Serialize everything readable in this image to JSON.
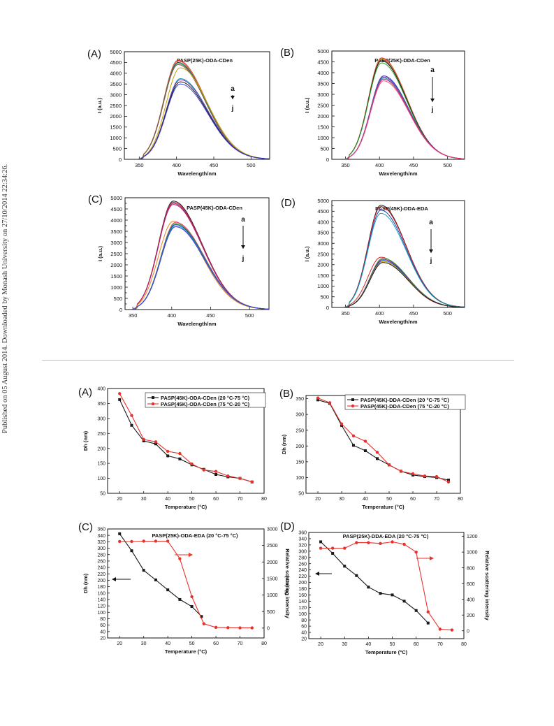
{
  "side_note": "Published on 05 August 2014. Downloaded by Monash University on 27/10/2014 22:34:26.",
  "chart_data": [
    {
      "type": "line",
      "panel_label": "(A)",
      "title": "PASP(25K)-ODA-CDen",
      "xlabel": "Wavelength/nm",
      "ylabel": "I (a.u.)",
      "xlim": [
        330,
        525
      ],
      "ylim": [
        0,
        5000
      ],
      "xticks": [
        350,
        400,
        450,
        500
      ],
      "yticks": [
        0,
        500,
        1000,
        1500,
        2000,
        2500,
        3000,
        3500,
        4000,
        4500,
        5000
      ],
      "arrow_from": "a",
      "arrow_to": "j",
      "peak_wavelength": 402,
      "peak_intensities": [
        4600,
        4560,
        4500,
        4450,
        4400,
        4250,
        3750,
        3700,
        3600,
        3500
      ],
      "series_colors": [
        "#d62728",
        "#e8871e",
        "#1f3fbf",
        "#2ca02c",
        "#8c564b",
        "#c8a000",
        "#17a2b8",
        "#7b2ea8",
        "#1a1a1a",
        "#3b3bd6"
      ]
    },
    {
      "type": "line",
      "panel_label": "(B)",
      "title": "PASP(25K)-DDA-CDen",
      "xlabel": "Wavelength/nm",
      "ylabel": "I (a.u.)",
      "xlim": [
        330,
        525
      ],
      "ylim": [
        0,
        5000
      ],
      "xticks": [
        350,
        400,
        450,
        500
      ],
      "yticks": [
        0,
        500,
        1000,
        1500,
        2000,
        2500,
        3000,
        3500,
        4000,
        4500,
        5000
      ],
      "arrow_from": "a",
      "arrow_to": "j",
      "peak_wavelength": 403,
      "peak_intensities": [
        4680,
        4650,
        4600,
        4550,
        4450,
        3850,
        3800,
        3750,
        3700,
        3620
      ],
      "series_colors": [
        "#d62728",
        "#e8871e",
        "#8c564b",
        "#1a1a1a",
        "#2ca02c",
        "#1f3fbf",
        "#7b2ea8",
        "#17a2b8",
        "#c2185b",
        "#ff3b7a"
      ]
    },
    {
      "type": "line",
      "panel_label": "(C)",
      "title": "PASP(45K)-ODA-CDen",
      "xlabel": "Wavelength/nm",
      "ylabel": "I (a.u.)",
      "xlim": [
        340,
        525
      ],
      "ylim": [
        0,
        5000
      ],
      "xticks": [
        350,
        400,
        450,
        500
      ],
      "yticks": [
        0,
        250,
        500,
        750,
        1000,
        1250,
        1500,
        1750,
        2000,
        2250,
        2500,
        2750,
        3000,
        3250,
        3500,
        3750,
        4000,
        4250,
        4500,
        4750,
        5000
      ],
      "yticks_labeled": [
        0,
        500,
        1000,
        1500,
        2000,
        2500,
        3000,
        3500,
        4000,
        4500,
        5000
      ],
      "arrow_from": "a",
      "arrow_to": "j",
      "peak_wavelength": 402,
      "peak_intensities": [
        4850,
        4800,
        4750,
        4700,
        3950,
        3900,
        3850,
        3800,
        3750,
        3700
      ],
      "series_colors": [
        "#1a1a1a",
        "#d62728",
        "#7b2ea8",
        "#c2185b",
        "#e8871e",
        "#ff3b7a",
        "#2ca02c",
        "#1f3fbf",
        "#17a2b8",
        "#3b3bd6"
      ]
    },
    {
      "type": "line",
      "panel_label": "(D)",
      "title": "PASP(45K)-DDA-EDA",
      "xlabel": "Wavelength/nm",
      "ylabel": "I (a.u.)",
      "xlim": [
        330,
        525
      ],
      "ylim": [
        0,
        5000
      ],
      "xticks": [
        350,
        400,
        450,
        500
      ],
      "yticks": [
        0,
        250,
        500,
        750,
        1000,
        1250,
        1500,
        1750,
        2000,
        2250,
        2500,
        2750,
        3000,
        3250,
        3500,
        3750,
        4000,
        4250,
        4500,
        4750,
        5000
      ],
      "yticks_labeled": [
        0,
        500,
        1000,
        1500,
        2000,
        2500,
        3000,
        3500,
        4000,
        4500,
        5000
      ],
      "arrow_from": "a",
      "arrow_to": "j",
      "peak_wavelength": 402,
      "peak_intensities": [
        4780,
        4720,
        4550,
        4400,
        2350,
        2300,
        2250,
        2200,
        2150,
        2100
      ],
      "series_colors": [
        "#1a1a1a",
        "#d62728",
        "#1f3fbf",
        "#17a2b8",
        "#d62728",
        "#2ca02c",
        "#7b2ea8",
        "#1f3fbf",
        "#c8a000",
        "#1a1a1a"
      ]
    },
    {
      "type": "line",
      "panel_label": "(A)",
      "xlabel": "Temperature (°C)",
      "ylabel": "Dh (nm)",
      "xlim": [
        15,
        80
      ],
      "ylim": [
        50,
        400
      ],
      "xticks": [
        20,
        30,
        40,
        50,
        60,
        70,
        80
      ],
      "yticks": [
        50,
        100,
        150,
        200,
        250,
        300,
        350,
        400
      ],
      "legend": "top-right",
      "series": [
        {
          "name": "PASP(45K)-ODA-CDen (20 °C-75 °C)",
          "color": "#1a1a1a",
          "marker": "square",
          "x": [
            20,
            25,
            30,
            35,
            40,
            45,
            50,
            55,
            60,
            65,
            70,
            75
          ],
          "y": [
            363,
            277,
            225,
            215,
            175,
            165,
            145,
            130,
            113,
            105,
            100,
            88
          ]
        },
        {
          "name": "PASP(45K)-ODA-CDen (75 °C-20 °C)",
          "color": "#e8312c",
          "marker": "circle",
          "x": [
            20,
            25,
            30,
            35,
            40,
            45,
            50,
            55,
            60,
            65,
            70,
            75
          ],
          "y": [
            383,
            310,
            230,
            222,
            190,
            183,
            148,
            128,
            123,
            108,
            100,
            88
          ]
        }
      ]
    },
    {
      "type": "line",
      "panel_label": "(B)",
      "xlabel": "Temperature (°C)",
      "ylabel": "Dh (nm)",
      "xlim": [
        15,
        80
      ],
      "ylim": [
        50,
        360
      ],
      "xticks": [
        20,
        30,
        40,
        50,
        60,
        70,
        80
      ],
      "yticks": [
        50,
        100,
        150,
        200,
        250,
        300,
        350
      ],
      "legend": "top-right",
      "series": [
        {
          "name": "PASP(45K)-DDA-CDen (20 °C-75 °C)",
          "color": "#1a1a1a",
          "marker": "square",
          "x": [
            20,
            25,
            30,
            35,
            40,
            45,
            50,
            55,
            60,
            65,
            70,
            75
          ],
          "y": [
            346,
            335,
            265,
            202,
            185,
            160,
            140,
            120,
            108,
            103,
            100,
            92
          ]
        },
        {
          "name": "PASP(45K)-DDA-CDen (75 °C-20 °C)",
          "color": "#e8312c",
          "marker": "circle",
          "x": [
            20,
            25,
            30,
            35,
            40,
            45,
            50,
            55,
            60,
            65,
            70,
            75
          ],
          "y": [
            352,
            337,
            270,
            232,
            215,
            180,
            140,
            120,
            112,
            105,
            103,
            86
          ]
        }
      ]
    },
    {
      "type": "line",
      "panel_label": "(C)",
      "title": "PASP(25K)-ODA-EDA (20 °C-75 °C)",
      "xlabel": "Temperature (°C)",
      "ylabel": "Dh (nm)",
      "y2label": "Relative scattering intensity",
      "xlim": [
        15,
        80
      ],
      "ylim": [
        20,
        360
      ],
      "y2lim": [
        -300,
        3000
      ],
      "xticks": [
        20,
        30,
        40,
        50,
        60,
        70,
        80
      ],
      "yticks": [
        20,
        40,
        60,
        80,
        100,
        120,
        140,
        160,
        180,
        200,
        220,
        240,
        260,
        280,
        300,
        320,
        340,
        360
      ],
      "y2ticks": [
        0,
        500,
        1000,
        1500,
        2000,
        2500,
        3000
      ],
      "series": [
        {
          "axis": "left",
          "color": "#1a1a1a",
          "marker": "square",
          "x": [
            20,
            25,
            30,
            35,
            40,
            45,
            50,
            54
          ],
          "y": [
            345,
            292,
            231,
            201,
            170,
            140,
            118,
            87
          ]
        },
        {
          "axis": "right",
          "color": "#e8312c",
          "marker": "circle",
          "x": [
            20,
            25,
            30,
            35,
            40,
            45,
            50,
            55,
            60,
            65,
            70,
            75
          ],
          "y": [
            2620,
            2620,
            2630,
            2630,
            2630,
            2100,
            950,
            130,
            20,
            10,
            5,
            5
          ]
        }
      ]
    },
    {
      "type": "line",
      "panel_label": "(D)",
      "title": "PASP(25K)-DDA-EDA (20 °C-75 °C)",
      "xlabel": "Temperature (°C)",
      "ylabel": "Dh (nm)",
      "y2label": "Relative scattering intensity",
      "xlim": [
        15,
        80
      ],
      "ylim": [
        20,
        360
      ],
      "y2lim": [
        -100,
        1250
      ],
      "xticks": [
        20,
        30,
        40,
        50,
        60,
        70,
        80
      ],
      "yticks": [
        20,
        40,
        60,
        80,
        100,
        120,
        140,
        160,
        180,
        200,
        220,
        240,
        260,
        280,
        300,
        320,
        340,
        360
      ],
      "y2ticks": [
        0,
        200,
        400,
        600,
        800,
        1000,
        1200
      ],
      "series": [
        {
          "axis": "left",
          "color": "#1a1a1a",
          "marker": "square",
          "x": [
            20,
            25,
            30,
            35,
            40,
            45,
            50,
            55,
            60,
            65
          ],
          "y": [
            330,
            293,
            252,
            222,
            185,
            165,
            160,
            140,
            110,
            70
          ]
        },
        {
          "axis": "right",
          "color": "#e8312c",
          "marker": "circle",
          "x": [
            20,
            25,
            30,
            35,
            40,
            45,
            50,
            55,
            60,
            65,
            70,
            75
          ],
          "y": [
            1050,
            1050,
            1050,
            1120,
            1120,
            1110,
            1130,
            1100,
            1000,
            240,
            20,
            10
          ]
        }
      ]
    }
  ]
}
